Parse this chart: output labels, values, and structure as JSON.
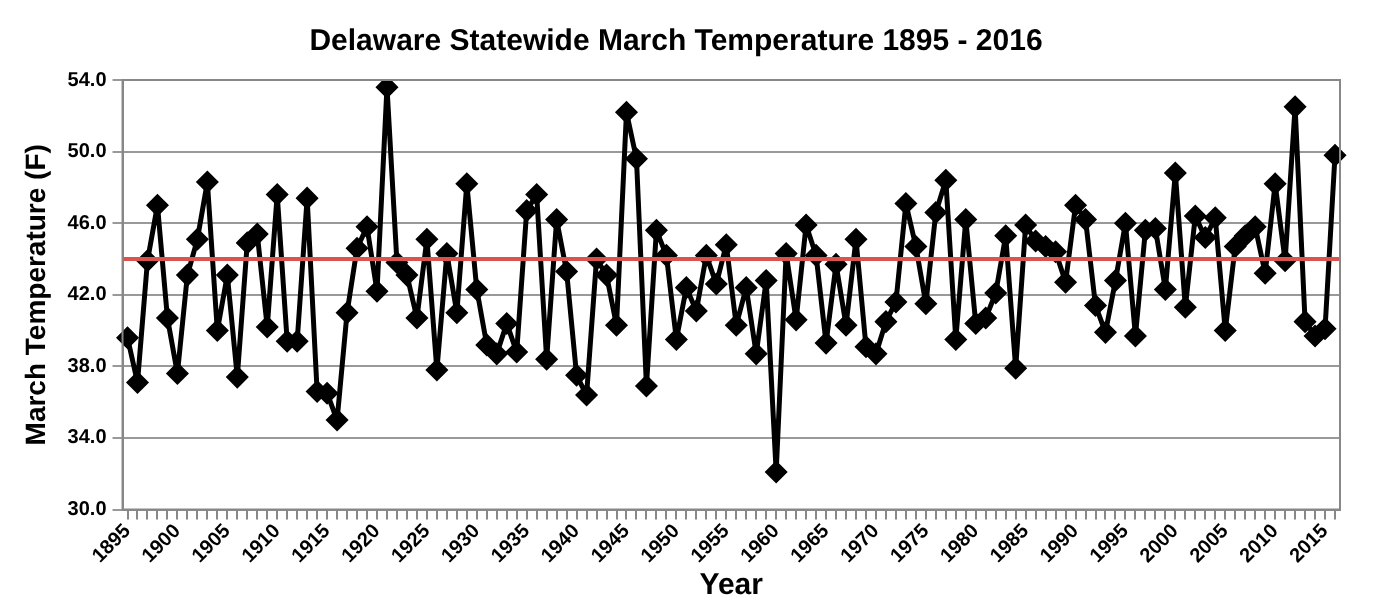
{
  "chart_data": {
    "type": "line",
    "title": "Delaware Statewide March Temperature 1895 - 2016",
    "xlabel": "Year",
    "ylabel": "March Temperature (F)",
    "categories": [
      "1895",
      null,
      null,
      null,
      null,
      "1900",
      null,
      null,
      null,
      null,
      "1905",
      null,
      null,
      null,
      null,
      "1910",
      null,
      null,
      null,
      null,
      "1915",
      null,
      null,
      null,
      null,
      "1920",
      null,
      null,
      null,
      null,
      "1925",
      null,
      null,
      null,
      null,
      "1930",
      null,
      null,
      null,
      null,
      "1935",
      null,
      null,
      null,
      null,
      "1940",
      null,
      null,
      null,
      null,
      "1945",
      null,
      null,
      null,
      null,
      "1950",
      null,
      null,
      null,
      null,
      "1955",
      null,
      null,
      null,
      null,
      "1960",
      null,
      null,
      null,
      null,
      "1965",
      null,
      null,
      null,
      null,
      "1970",
      null,
      null,
      null,
      null,
      "1975",
      null,
      null,
      null,
      null,
      "1980",
      null,
      null,
      null,
      null,
      "1985",
      null,
      null,
      null,
      null,
      "1990",
      null,
      null,
      null,
      null,
      "1995",
      null,
      null,
      null,
      null,
      "2000",
      null,
      null,
      null,
      null,
      "2005",
      null,
      null,
      null,
      null,
      "2010",
      null,
      null,
      null,
      null,
      "2015",
      null
    ],
    "series": [
      {
        "color": "#000000",
        "values": [
          39.6,
          37.1,
          43.9,
          47.0,
          40.7,
          37.6,
          43.1,
          45.1,
          48.3,
          40.0,
          43.1,
          37.4,
          44.9,
          45.4,
          40.2,
          47.6,
          39.4,
          39.4,
          47.4,
          36.6,
          36.5,
          35.0,
          41.0,
          44.6,
          45.8,
          42.2,
          53.6,
          43.8,
          43.1,
          40.7,
          45.1,
          37.8,
          44.3,
          41.0,
          48.2,
          42.3,
          39.2,
          38.7,
          40.4,
          38.8,
          46.7,
          47.6,
          38.4,
          46.2,
          43.3,
          37.5,
          36.4,
          44.0,
          43.1,
          40.3,
          52.2,
          49.6,
          36.9,
          45.6,
          44.2,
          39.5,
          42.4,
          41.1,
          44.2,
          42.6,
          44.8,
          40.3,
          42.4,
          38.7,
          42.8,
          32.1,
          44.3,
          40.6,
          45.9,
          44.2,
          39.3,
          43.7,
          40.3,
          45.1,
          39.1,
          38.7,
          40.5,
          41.6,
          47.1,
          44.7,
          41.5,
          46.6,
          48.4,
          39.5,
          46.2,
          40.4,
          40.7,
          42.1,
          45.3,
          37.9,
          45.9,
          45.0,
          44.7,
          44.4,
          42.7,
          47.0,
          46.2,
          41.4,
          39.9,
          42.8,
          46.0,
          39.7,
          45.6,
          45.7,
          42.3,
          48.8,
          41.3,
          46.4,
          45.2,
          46.3,
          40.0,
          44.7,
          45.3,
          45.8,
          43.2,
          48.2,
          43.9,
          52.5,
          40.5,
          39.7,
          40.1,
          49.8
        ]
      }
    ],
    "ylim": [
      30,
      54
    ],
    "yticks": [
      {
        "value": 30,
        "label": "30.0"
      },
      {
        "value": 34,
        "label": "34.0"
      },
      {
        "value": 38,
        "label": "38.0"
      },
      {
        "value": 42,
        "label": "42.0"
      },
      {
        "value": 46,
        "label": "46.0"
      },
      {
        "value": 50,
        "label": "50.0"
      },
      {
        "value": 54,
        "label": "54.0"
      }
    ],
    "ref_lines": [
      {
        "axis": "y",
        "value": 44.0,
        "color": "#d9534f"
      }
    ],
    "grid": "y",
    "legend": false,
    "marker": "diamond",
    "line_style": "solid"
  }
}
